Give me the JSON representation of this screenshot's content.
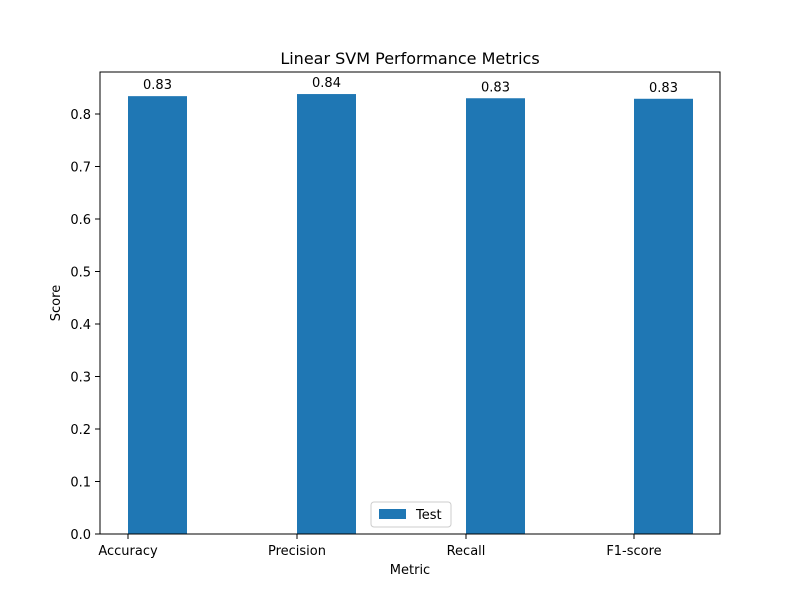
{
  "chart_data": {
    "type": "bar",
    "title": "Linear SVM Performance Metrics",
    "xlabel": "Metric",
    "ylabel": "Score",
    "categories": [
      "Accuracy",
      "Precision",
      "Recall",
      "F1-score"
    ],
    "series": [
      {
        "name": "Test",
        "color": "#1f77b4",
        "values": [
          0.834,
          0.838,
          0.83,
          0.829
        ],
        "labels": [
          "0.83",
          "0.84",
          "0.83",
          "0.83"
        ]
      }
    ],
    "yticks": [
      "0.0",
      "0.1",
      "0.2",
      "0.3",
      "0.4",
      "0.5",
      "0.6",
      "0.7",
      "0.8"
    ],
    "ylim": [
      0,
      0.88
    ],
    "grid": false,
    "legend_position": "bottom-center"
  }
}
